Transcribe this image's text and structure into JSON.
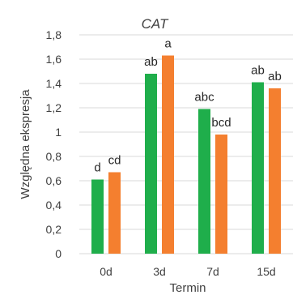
{
  "chart_data": {
    "type": "bar",
    "title": "CAT",
    "xlabel": "Termin",
    "ylabel": "Względna ekspresja",
    "ylim": [
      0,
      1.8
    ],
    "yticks": [
      "0",
      "0,2",
      "0,4",
      "0,6",
      "0,8",
      "1",
      "1,2",
      "1,4",
      "1,6",
      "1,8"
    ],
    "ytick_values": [
      0,
      0.2,
      0.4,
      0.6,
      0.8,
      1.0,
      1.2,
      1.4,
      1.6,
      1.8
    ],
    "categories": [
      "0d",
      "3d",
      "7d",
      "15d"
    ],
    "grid": true,
    "series": [
      {
        "color": "#1fae4b",
        "values": [
          0.61,
          1.48,
          1.19,
          1.41
        ],
        "labels": [
          "d",
          "ab",
          "abc",
          "ab"
        ]
      },
      {
        "color": "#f47f2f",
        "values": [
          0.67,
          1.63,
          0.98,
          1.36
        ],
        "labels": [
          "cd",
          "a",
          "bcd",
          "ab"
        ]
      }
    ]
  }
}
